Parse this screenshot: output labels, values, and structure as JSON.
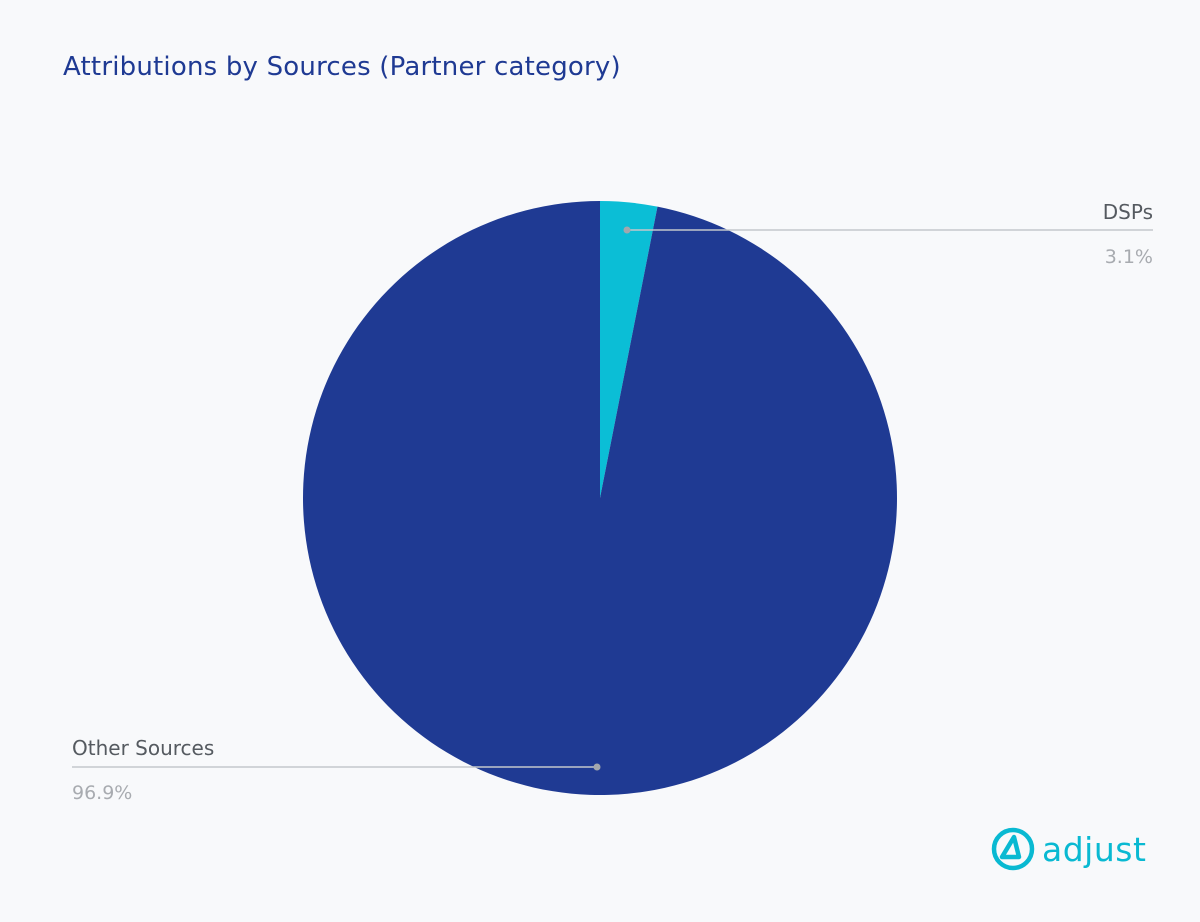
{
  "chart_data": {
    "type": "pie",
    "title": "Attributions by Sources (Partner category)",
    "slices": [
      {
        "label": "DSPs",
        "value": 3.1,
        "value_label": "3.1%",
        "color": "#0bbed6"
      },
      {
        "label": "Other Sources",
        "value": 96.9,
        "value_label": "96.9%",
        "color": "#1f3a93"
      }
    ],
    "start_angle": "12 o'clock",
    "direction": "clockwise",
    "leader_line_color": "#c4c7cc",
    "leader_dot_color": "#a3a7ad"
  },
  "brand": {
    "name": "adjust",
    "color": "#09b9d2",
    "icon": "adjust-logo-icon"
  }
}
